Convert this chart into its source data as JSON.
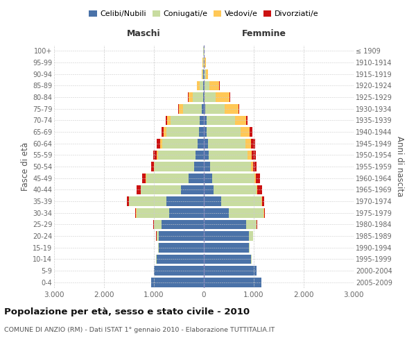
{
  "age_groups": [
    "0-4",
    "5-9",
    "10-14",
    "15-19",
    "20-24",
    "25-29",
    "30-34",
    "35-39",
    "40-44",
    "45-49",
    "50-54",
    "55-59",
    "60-64",
    "65-69",
    "70-74",
    "75-79",
    "80-84",
    "85-89",
    "90-94",
    "95-99",
    "100+"
  ],
  "birth_years": [
    "2005-2009",
    "2000-2004",
    "1995-1999",
    "1990-1994",
    "1985-1989",
    "1980-1984",
    "1975-1979",
    "1970-1974",
    "1965-1969",
    "1960-1964",
    "1955-1959",
    "1950-1954",
    "1945-1949",
    "1940-1944",
    "1935-1939",
    "1930-1934",
    "1925-1929",
    "1920-1924",
    "1915-1919",
    "1910-1914",
    "≤ 1909"
  ],
  "males": {
    "celibi": [
      1050,
      1000,
      950,
      900,
      900,
      850,
      700,
      750,
      460,
      300,
      200,
      160,
      120,
      100,
      80,
      40,
      20,
      10,
      8,
      5,
      3
    ],
    "coniugati": [
      5,
      5,
      5,
      10,
      50,
      150,
      650,
      750,
      800,
      850,
      780,
      750,
      720,
      650,
      580,
      380,
      200,
      80,
      25,
      15,
      5
    ],
    "vedovi": [
      0,
      0,
      0,
      0,
      1,
      2,
      5,
      5,
      5,
      10,
      20,
      30,
      40,
      60,
      70,
      80,
      80,
      50,
      10,
      5,
      2
    ],
    "divorziati": [
      0,
      0,
      0,
      2,
      5,
      5,
      15,
      30,
      80,
      80,
      60,
      80,
      60,
      40,
      30,
      20,
      15,
      5,
      2,
      0,
      0
    ]
  },
  "females": {
    "nubili": [
      1150,
      1050,
      950,
      900,
      900,
      850,
      500,
      350,
      200,
      160,
      120,
      100,
      80,
      60,
      50,
      30,
      15,
      8,
      5,
      4,
      3
    ],
    "coniugate": [
      5,
      5,
      10,
      20,
      80,
      200,
      700,
      800,
      850,
      850,
      820,
      780,
      750,
      680,
      580,
      380,
      220,
      100,
      30,
      15,
      5
    ],
    "vedove": [
      0,
      0,
      0,
      0,
      2,
      5,
      5,
      10,
      15,
      30,
      50,
      80,
      120,
      180,
      220,
      280,
      280,
      200,
      50,
      20,
      5
    ],
    "divorziate": [
      0,
      0,
      0,
      2,
      5,
      10,
      20,
      50,
      100,
      80,
      70,
      80,
      80,
      50,
      30,
      15,
      10,
      5,
      2,
      0,
      0
    ]
  },
  "colors": {
    "celibi_nubili": "#4a72a8",
    "coniugati": "#c8dca0",
    "vedovi": "#ffc857",
    "divorziati": "#cc1111"
  },
  "xlim": 3000,
  "title": "Popolazione per età, sesso e stato civile - 2010",
  "subtitle": "COMUNE DI ANZIO (RM) - Dati ISTAT 1° gennaio 2010 - Elaborazione TUTTITALIA.IT",
  "ylabel_left": "Fasce di età",
  "ylabel_right": "Anni di nascita",
  "xlabel_left": "Maschi",
  "xlabel_right": "Femmine",
  "bg_color": "#ffffff",
  "grid_color": "#cccccc"
}
